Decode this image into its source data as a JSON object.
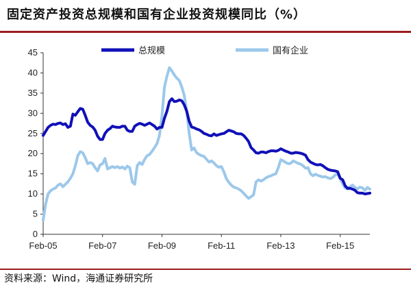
{
  "title": "固定资产投资总规模和国有企业投资规模同比（%）",
  "source": "资料来源：Wind，海通证券研究所",
  "colors": {
    "accent_rule": "#9a1c1c",
    "total": "#1010b8",
    "soe": "#9cc8ea"
  },
  "chart_data": {
    "type": "line",
    "title": "固定资产投资总规模和国有企业投资规模同比（%）",
    "xlabel": "",
    "ylabel": "",
    "x_tick_labels": [
      "Feb-05",
      "Feb-07",
      "Feb-09",
      "Feb-11",
      "Feb-13",
      "Feb-15"
    ],
    "x_tick_dates": [
      "2005-02",
      "2007-02",
      "2009-02",
      "2011-02",
      "2013-02",
      "2015-02"
    ],
    "x_range": [
      "2005-02",
      "2016-02"
    ],
    "ylim": [
      0,
      45
    ],
    "y_ticks": [
      0,
      5,
      10,
      15,
      20,
      25,
      30,
      35,
      40,
      45
    ],
    "grid": false,
    "legend_position": "top",
    "series": [
      {
        "name": "总规模",
        "color": "#1010b8",
        "points": [
          [
            "2005-02",
            24.5
          ],
          [
            "2005-03",
            25.5
          ],
          [
            "2005-04",
            26.5
          ],
          [
            "2005-05",
            27.0
          ],
          [
            "2005-06",
            27.3
          ],
          [
            "2005-07",
            27.2
          ],
          [
            "2005-08",
            27.5
          ],
          [
            "2005-09",
            27.6
          ],
          [
            "2005-10",
            27.2
          ],
          [
            "2005-11",
            27.4
          ],
          [
            "2005-12",
            26.5
          ],
          [
            "2006-01",
            26.8
          ],
          [
            "2006-02",
            29.8
          ],
          [
            "2006-03",
            29.5
          ],
          [
            "2006-04",
            30.4
          ],
          [
            "2006-05",
            31.2
          ],
          [
            "2006-06",
            31.0
          ],
          [
            "2006-07",
            29.5
          ],
          [
            "2006-08",
            27.8
          ],
          [
            "2006-09",
            27.0
          ],
          [
            "2006-10",
            26.6
          ],
          [
            "2006-11",
            25.8
          ],
          [
            "2006-12",
            24.3
          ],
          [
            "2007-01",
            23.5
          ],
          [
            "2007-02",
            23.5
          ],
          [
            "2007-03",
            25.0
          ],
          [
            "2007-04",
            25.8
          ],
          [
            "2007-05",
            26.2
          ],
          [
            "2007-06",
            26.8
          ],
          [
            "2007-07",
            26.6
          ],
          [
            "2007-08",
            26.5
          ],
          [
            "2007-09",
            26.5
          ],
          [
            "2007-10",
            26.8
          ],
          [
            "2007-11",
            26.8
          ],
          [
            "2007-12",
            25.8
          ],
          [
            "2008-01",
            25.5
          ],
          [
            "2008-02",
            25.5
          ],
          [
            "2008-03",
            26.8
          ],
          [
            "2008-04",
            27.2
          ],
          [
            "2008-05",
            27.5
          ],
          [
            "2008-06",
            27.3
          ],
          [
            "2008-07",
            27.0
          ],
          [
            "2008-08",
            27.3
          ],
          [
            "2008-09",
            27.6
          ],
          [
            "2008-10",
            27.2
          ],
          [
            "2008-11",
            26.8
          ],
          [
            "2008-12",
            26.1
          ],
          [
            "2009-01",
            26.5
          ],
          [
            "2009-02",
            26.5
          ],
          [
            "2009-03",
            28.8
          ],
          [
            "2009-04",
            30.5
          ],
          [
            "2009-05",
            32.9
          ],
          [
            "2009-06",
            33.6
          ],
          [
            "2009-07",
            32.9
          ],
          [
            "2009-08",
            33.0
          ],
          [
            "2009-09",
            33.3
          ],
          [
            "2009-10",
            33.1
          ],
          [
            "2009-11",
            32.1
          ],
          [
            "2009-12",
            30.5
          ],
          [
            "2010-01",
            28.0
          ],
          [
            "2010-02",
            26.6
          ],
          [
            "2010-03",
            26.4
          ],
          [
            "2010-04",
            26.1
          ],
          [
            "2010-05",
            25.9
          ],
          [
            "2010-06",
            25.5
          ],
          [
            "2010-07",
            25.0
          ],
          [
            "2010-08",
            24.8
          ],
          [
            "2010-09",
            24.5
          ],
          [
            "2010-10",
            24.4
          ],
          [
            "2010-11",
            24.9
          ],
          [
            "2010-12",
            24.5
          ],
          [
            "2011-01",
            24.7
          ],
          [
            "2011-02",
            24.9
          ],
          [
            "2011-03",
            25.0
          ],
          [
            "2011-04",
            25.4
          ],
          [
            "2011-05",
            25.8
          ],
          [
            "2011-06",
            25.6
          ],
          [
            "2011-07",
            25.4
          ],
          [
            "2011-08",
            25.0
          ],
          [
            "2011-09",
            24.9
          ],
          [
            "2011-10",
            24.9
          ],
          [
            "2011-11",
            24.5
          ],
          [
            "2011-12",
            23.8
          ],
          [
            "2012-01",
            23.0
          ],
          [
            "2012-02",
            21.5
          ],
          [
            "2012-03",
            20.9
          ],
          [
            "2012-04",
            20.2
          ],
          [
            "2012-05",
            20.1
          ],
          [
            "2012-06",
            20.4
          ],
          [
            "2012-07",
            20.4
          ],
          [
            "2012-08",
            20.2
          ],
          [
            "2012-09",
            20.5
          ],
          [
            "2012-10",
            20.7
          ],
          [
            "2012-11",
            20.7
          ],
          [
            "2012-12",
            20.6
          ],
          [
            "2013-01",
            20.8
          ],
          [
            "2013-02",
            21.2
          ],
          [
            "2013-03",
            20.9
          ],
          [
            "2013-04",
            20.6
          ],
          [
            "2013-05",
            20.4
          ],
          [
            "2013-06",
            20.1
          ],
          [
            "2013-07",
            20.1
          ],
          [
            "2013-08",
            20.3
          ],
          [
            "2013-09",
            20.2
          ],
          [
            "2013-10",
            20.1
          ],
          [
            "2013-11",
            19.9
          ],
          [
            "2013-12",
            19.6
          ],
          [
            "2014-01",
            18.5
          ],
          [
            "2014-02",
            17.9
          ],
          [
            "2014-03",
            17.6
          ],
          [
            "2014-04",
            17.3
          ],
          [
            "2014-05",
            17.2
          ],
          [
            "2014-06",
            17.3
          ],
          [
            "2014-07",
            17.0
          ],
          [
            "2014-08",
            16.5
          ],
          [
            "2014-09",
            16.1
          ],
          [
            "2014-10",
            15.9
          ],
          [
            "2014-11",
            15.8
          ],
          [
            "2014-12",
            15.7
          ],
          [
            "2015-01",
            15.5
          ],
          [
            "2015-02",
            13.9
          ],
          [
            "2015-03",
            13.5
          ],
          [
            "2015-04",
            12.0
          ],
          [
            "2015-05",
            11.4
          ],
          [
            "2015-06",
            11.4
          ],
          [
            "2015-07",
            11.2
          ],
          [
            "2015-08",
            10.9
          ],
          [
            "2015-09",
            10.3
          ],
          [
            "2015-10",
            10.2
          ],
          [
            "2015-11",
            10.2
          ],
          [
            "2015-12",
            10.0
          ],
          [
            "2016-01",
            10.1
          ],
          [
            "2016-02",
            10.2
          ]
        ]
      },
      {
        "name": "国有企业",
        "color": "#9cc8ea",
        "points": [
          [
            "2005-02",
            3.5
          ],
          [
            "2005-03",
            7.5
          ],
          [
            "2005-04",
            10.0
          ],
          [
            "2005-05",
            10.8
          ],
          [
            "2005-06",
            11.2
          ],
          [
            "2005-07",
            11.5
          ],
          [
            "2005-08",
            12.2
          ],
          [
            "2005-09",
            12.5
          ],
          [
            "2005-10",
            11.8
          ],
          [
            "2005-11",
            12.4
          ],
          [
            "2005-12",
            13.0
          ],
          [
            "2006-01",
            13.9
          ],
          [
            "2006-02",
            15.0
          ],
          [
            "2006-03",
            17.0
          ],
          [
            "2006-04",
            19.5
          ],
          [
            "2006-05",
            20.5
          ],
          [
            "2006-06",
            20.2
          ],
          [
            "2006-07",
            19.0
          ],
          [
            "2006-08",
            17.5
          ],
          [
            "2006-09",
            17.8
          ],
          [
            "2006-10",
            17.5
          ],
          [
            "2006-11",
            16.5
          ],
          [
            "2006-12",
            15.7
          ],
          [
            "2007-01",
            17.2
          ],
          [
            "2007-02",
            17.5
          ],
          [
            "2007-03",
            18.8
          ],
          [
            "2007-04",
            16.2
          ],
          [
            "2007-05",
            16.5
          ],
          [
            "2007-06",
            16.8
          ],
          [
            "2007-07",
            16.5
          ],
          [
            "2007-08",
            16.8
          ],
          [
            "2007-09",
            16.4
          ],
          [
            "2007-10",
            16.7
          ],
          [
            "2007-11",
            16.2
          ],
          [
            "2007-12",
            16.9
          ],
          [
            "2008-01",
            16.5
          ],
          [
            "2008-02",
            13.0
          ],
          [
            "2008-03",
            12.4
          ],
          [
            "2008-04",
            17.0
          ],
          [
            "2008-05",
            17.8
          ],
          [
            "2008-06",
            17.3
          ],
          [
            "2008-07",
            18.6
          ],
          [
            "2008-08",
            19.5
          ],
          [
            "2008-09",
            19.8
          ],
          [
            "2008-10",
            20.6
          ],
          [
            "2008-11",
            21.5
          ],
          [
            "2008-12",
            22.5
          ],
          [
            "2009-01",
            24.5
          ],
          [
            "2009-02",
            29.5
          ],
          [
            "2009-03",
            36.5
          ],
          [
            "2009-04",
            39.2
          ],
          [
            "2009-05",
            41.3
          ],
          [
            "2009-06",
            40.5
          ],
          [
            "2009-07",
            39.5
          ],
          [
            "2009-08",
            38.7
          ],
          [
            "2009-09",
            38.1
          ],
          [
            "2009-10",
            36.5
          ],
          [
            "2009-11",
            34.4
          ],
          [
            "2009-12",
            30.5
          ],
          [
            "2010-01",
            25.0
          ],
          [
            "2010-02",
            20.9
          ],
          [
            "2010-03",
            21.4
          ],
          [
            "2010-04",
            20.2
          ],
          [
            "2010-05",
            19.8
          ],
          [
            "2010-06",
            19.5
          ],
          [
            "2010-07",
            19.3
          ],
          [
            "2010-08",
            18.6
          ],
          [
            "2010-09",
            17.9
          ],
          [
            "2010-10",
            18.2
          ],
          [
            "2010-11",
            17.7
          ],
          [
            "2010-12",
            17.0
          ],
          [
            "2011-01",
            16.6
          ],
          [
            "2011-02",
            16.8
          ],
          [
            "2011-03",
            15.5
          ],
          [
            "2011-04",
            13.8
          ],
          [
            "2011-05",
            12.9
          ],
          [
            "2011-06",
            12.2
          ],
          [
            "2011-07",
            11.7
          ],
          [
            "2011-08",
            11.5
          ],
          [
            "2011-09",
            11.2
          ],
          [
            "2011-10",
            10.8
          ],
          [
            "2011-11",
            10.2
          ],
          [
            "2011-12",
            9.5
          ],
          [
            "2012-01",
            8.9
          ],
          [
            "2012-02",
            9.3
          ],
          [
            "2012-03",
            9.8
          ],
          [
            "2012-04",
            13.0
          ],
          [
            "2012-05",
            13.5
          ],
          [
            "2012-06",
            13.2
          ],
          [
            "2012-07",
            13.5
          ],
          [
            "2012-08",
            14.0
          ],
          [
            "2012-09",
            14.3
          ],
          [
            "2012-10",
            14.5
          ],
          [
            "2012-11",
            14.8
          ],
          [
            "2012-12",
            15.0
          ],
          [
            "2013-01",
            16.5
          ],
          [
            "2013-02",
            18.5
          ],
          [
            "2013-03",
            18.2
          ],
          [
            "2013-04",
            17.8
          ],
          [
            "2013-05",
            17.5
          ],
          [
            "2013-06",
            17.6
          ],
          [
            "2013-07",
            18.2
          ],
          [
            "2013-08",
            17.9
          ],
          [
            "2013-09",
            17.6
          ],
          [
            "2013-10",
            17.4
          ],
          [
            "2013-11",
            17.0
          ],
          [
            "2013-12",
            16.4
          ],
          [
            "2014-01",
            16.5
          ],
          [
            "2014-02",
            15.0
          ],
          [
            "2014-03",
            14.5
          ],
          [
            "2014-04",
            14.9
          ],
          [
            "2014-05",
            14.6
          ],
          [
            "2014-06",
            14.4
          ],
          [
            "2014-07",
            14.2
          ],
          [
            "2014-08",
            14.3
          ],
          [
            "2014-09",
            14.0
          ],
          [
            "2014-10",
            13.8
          ],
          [
            "2014-11",
            14.1
          ],
          [
            "2014-12",
            14.7
          ],
          [
            "2015-01",
            15.0
          ],
          [
            "2015-02",
            13.8
          ],
          [
            "2015-03",
            12.5
          ],
          [
            "2015-04",
            11.5
          ],
          [
            "2015-05",
            11.2
          ],
          [
            "2015-06",
            11.8
          ],
          [
            "2015-07",
            12.2
          ],
          [
            "2015-08",
            11.6
          ],
          [
            "2015-09",
            11.3
          ],
          [
            "2015-10",
            11.7
          ],
          [
            "2015-11",
            11.5
          ],
          [
            "2015-12",
            10.9
          ],
          [
            "2016-01",
            11.6
          ],
          [
            "2016-02",
            11.2
          ]
        ]
      }
    ]
  }
}
